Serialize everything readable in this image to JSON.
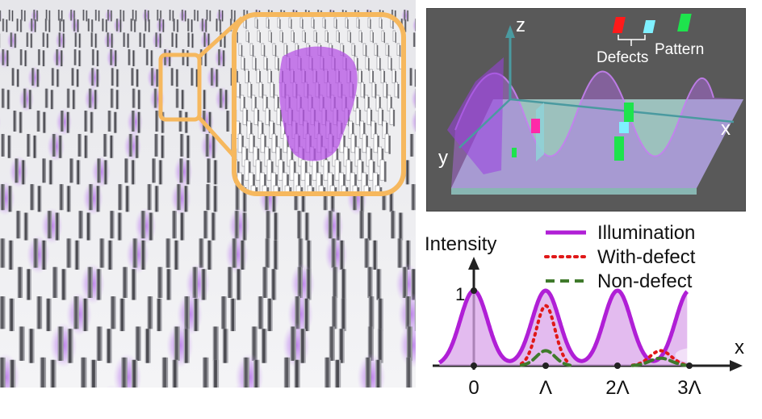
{
  "scheme": {
    "axis_z": "z",
    "axis_x": "x",
    "axis_y": "y",
    "defects_label": "Defects",
    "pattern_label": "Pattern",
    "colors": {
      "defect_red": "#ff1a1a",
      "defect_cyan": "#7ff0ff",
      "pattern_green": "#1ee34d",
      "illumination": "#b04fe8"
    }
  },
  "plot": {
    "ylabel": "Intensity",
    "xlabel": "x",
    "ytick": "1",
    "xticks": [
      "0",
      "Λ",
      "2Λ",
      "3Λ"
    ],
    "legend": [
      {
        "label": "Illumination",
        "style": "solid",
        "color": "#b01fd6"
      },
      {
        "label": "With-defect",
        "style": "dotted",
        "color": "#e01818"
      },
      {
        "label": "Non-defect",
        "style": "dashed",
        "color": "#3f7a2b"
      }
    ]
  },
  "chart_data": {
    "type": "line",
    "xlabel": "x",
    "ylabel": "Intensity",
    "x_ticks": [
      "0",
      "Λ",
      "2Λ",
      "3Λ"
    ],
    "y_ticks": [
      "1"
    ],
    "series": [
      {
        "name": "Illumination",
        "period": 1,
        "peak_positions": [
          0,
          1,
          2,
          3
        ],
        "peak_value": 1.0
      },
      {
        "name": "With-defect",
        "peaks": [
          {
            "x": 1,
            "y": 0.8
          },
          {
            "x": 2.6,
            "y": 0.2
          }
        ]
      },
      {
        "name": "Non-defect",
        "peaks": [
          {
            "x": 1,
            "y": 0.2
          },
          {
            "x": 2.6,
            "y": 0.1
          }
        ]
      }
    ]
  }
}
